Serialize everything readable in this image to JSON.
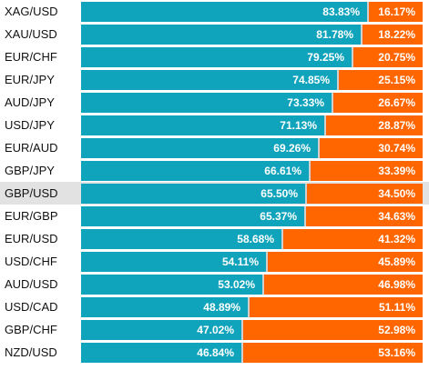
{
  "colors": {
    "long": "#10a3bc",
    "short": "#ff6600",
    "highlight": "#e2e2e2"
  },
  "highlighted_pair": "GBP/USD",
  "rows": [
    {
      "pair": "XAG/USD",
      "long_pct": 83.83,
      "short_pct": 16.17,
      "long_label": "83.83%",
      "short_label": "16.17%"
    },
    {
      "pair": "XAU/USD",
      "long_pct": 81.78,
      "short_pct": 18.22,
      "long_label": "81.78%",
      "short_label": "18.22%"
    },
    {
      "pair": "EUR/CHF",
      "long_pct": 79.25,
      "short_pct": 20.75,
      "long_label": "79.25%",
      "short_label": "20.75%"
    },
    {
      "pair": "EUR/JPY",
      "long_pct": 74.85,
      "short_pct": 25.15,
      "long_label": "74.85%",
      "short_label": "25.15%"
    },
    {
      "pair": "AUD/JPY",
      "long_pct": 73.33,
      "short_pct": 26.67,
      "long_label": "73.33%",
      "short_label": "26.67%"
    },
    {
      "pair": "USD/JPY",
      "long_pct": 71.13,
      "short_pct": 28.87,
      "long_label": "71.13%",
      "short_label": "28.87%"
    },
    {
      "pair": "EUR/AUD",
      "long_pct": 69.26,
      "short_pct": 30.74,
      "long_label": "69.26%",
      "short_label": "30.74%"
    },
    {
      "pair": "GBP/JPY",
      "long_pct": 66.61,
      "short_pct": 33.39,
      "long_label": "66.61%",
      "short_label": "33.39%"
    },
    {
      "pair": "GBP/USD",
      "long_pct": 65.5,
      "short_pct": 34.5,
      "long_label": "65.50%",
      "short_label": "34.50%"
    },
    {
      "pair": "EUR/GBP",
      "long_pct": 65.37,
      "short_pct": 34.63,
      "long_label": "65.37%",
      "short_label": "34.63%"
    },
    {
      "pair": "EUR/USD",
      "long_pct": 58.68,
      "short_pct": 41.32,
      "long_label": "58.68%",
      "short_label": "41.32%"
    },
    {
      "pair": "USD/CHF",
      "long_pct": 54.11,
      "short_pct": 45.89,
      "long_label": "54.11%",
      "short_label": "45.89%"
    },
    {
      "pair": "AUD/USD",
      "long_pct": 53.02,
      "short_pct": 46.98,
      "long_label": "53.02%",
      "short_label": "46.98%"
    },
    {
      "pair": "USD/CAD",
      "long_pct": 48.89,
      "short_pct": 51.11,
      "long_label": "48.89%",
      "short_label": "51.11%"
    },
    {
      "pair": "GBP/CHF",
      "long_pct": 47.02,
      "short_pct": 52.98,
      "long_label": "47.02%",
      "short_label": "52.98%"
    },
    {
      "pair": "NZD/USD",
      "long_pct": 46.84,
      "short_pct": 53.16,
      "long_label": "46.84%",
      "short_label": "53.16%"
    }
  ]
}
